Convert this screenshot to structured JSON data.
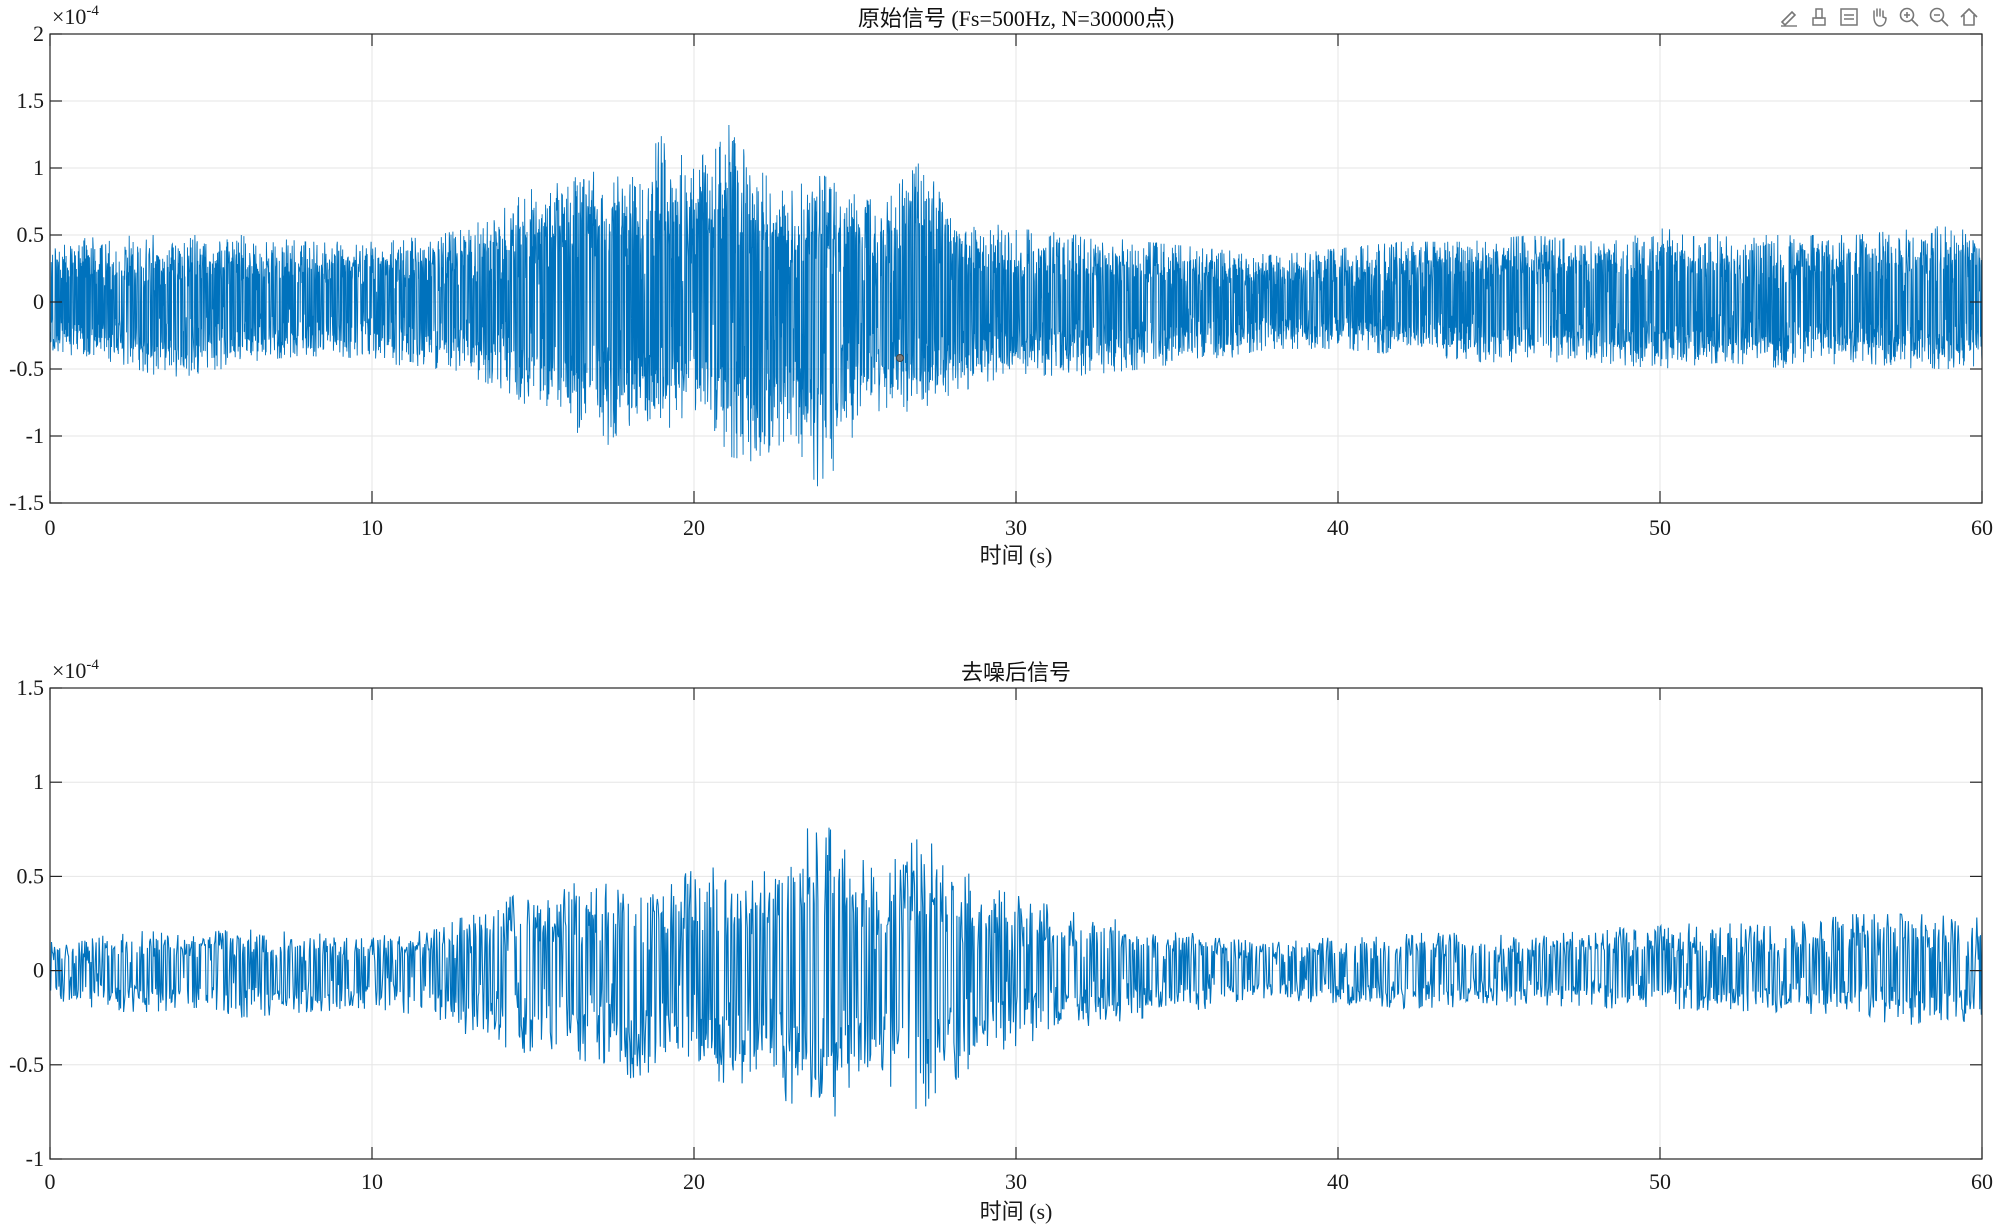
{
  "toolbar": {
    "icons": [
      "brush-icon",
      "data-tip-icon",
      "save-icon",
      "pan-icon",
      "zoom-in-icon",
      "zoom-out-icon",
      "home-icon"
    ]
  },
  "colors": {
    "signal": "#0072BD",
    "grid": "#e6e6e6",
    "axis": "#262626"
  },
  "chart_data": [
    {
      "type": "line",
      "title": "原始信号  (Fs=500Hz, N=30000点)",
      "xlabel": "时间  (s)",
      "ylabel": "",
      "exponent": "×10",
      "exponent_power": "-4",
      "xlim": [
        0,
        60
      ],
      "ylim": [
        -1.5,
        2
      ],
      "xticks": [
        "0",
        "10",
        "20",
        "30",
        "40",
        "50",
        "60"
      ],
      "yticks": [
        "2",
        "1.5",
        "1",
        "0.5",
        "0",
        "-0.5",
        "-1",
        "-1.5"
      ],
      "sample_rate_hz": 500,
      "num_points": 30000,
      "series": [
        {
          "envelope": {
            "t": [
              0,
              2,
              4,
              6,
              8,
              10,
              12,
              13,
              14,
              15,
              16,
              17,
              18,
              19,
              20,
              21,
              22,
              23,
              24,
              25,
              26,
              27,
              28,
              29,
              30,
              32,
              34,
              36,
              38,
              40,
              42,
              44,
              46,
              48,
              50,
              52,
              54,
              56,
              58,
              60
            ],
            "max": [
              0.45,
              0.5,
              0.5,
              0.5,
              0.45,
              0.45,
              0.5,
              0.55,
              0.7,
              0.85,
              0.9,
              1.0,
              0.9,
              1.25,
              1.0,
              1.35,
              1.0,
              0.85,
              0.95,
              0.8,
              0.75,
              1.1,
              0.65,
              0.6,
              0.55,
              0.5,
              0.45,
              0.4,
              0.35,
              0.4,
              0.45,
              0.45,
              0.5,
              0.45,
              0.55,
              0.5,
              0.5,
              0.5,
              0.55,
              0.6
            ],
            "min": [
              -0.4,
              -0.45,
              -0.6,
              -0.45,
              -0.4,
              -0.45,
              -0.5,
              -0.55,
              -0.65,
              -0.8,
              -0.9,
              -1.1,
              -1.0,
              -0.95,
              -0.9,
              -1.15,
              -1.2,
              -1.0,
              -1.45,
              -1.0,
              -0.85,
              -0.8,
              -0.7,
              -0.6,
              -0.55,
              -0.55,
              -0.5,
              -0.45,
              -0.35,
              -0.35,
              -0.4,
              -0.45,
              -0.45,
              -0.45,
              -0.5,
              -0.45,
              -0.5,
              -0.45,
              -0.5,
              -0.5
            ]
          }
        }
      ]
    },
    {
      "type": "line",
      "title": "去噪后信号",
      "xlabel": "时间  (s)",
      "ylabel": "",
      "exponent": "×10",
      "exponent_power": "-4",
      "xlim": [
        0,
        60
      ],
      "ylim": [
        -1,
        1.5
      ],
      "xticks": [
        "0",
        "10",
        "20",
        "30",
        "40",
        "50",
        "60"
      ],
      "yticks": [
        "1.5",
        "1",
        "0.5",
        "0",
        "-0.5",
        "-1"
      ],
      "series": [
        {
          "envelope": {
            "t": [
              0,
              2,
              4,
              6,
              8,
              10,
              12,
              13,
              14,
              15,
              16,
              17,
              18,
              19,
              20,
              21,
              22,
              23,
              24,
              25,
              26,
              27,
              28,
              29,
              30,
              32,
              34,
              36,
              38,
              40,
              42,
              44,
              46,
              48,
              50,
              52,
              54,
              56,
              58,
              60
            ],
            "max": [
              0.15,
              0.22,
              0.2,
              0.22,
              0.2,
              0.18,
              0.22,
              0.3,
              0.38,
              0.42,
              0.45,
              0.5,
              0.5,
              0.45,
              0.55,
              0.55,
              0.5,
              0.65,
              0.85,
              0.6,
              0.55,
              0.72,
              0.6,
              0.45,
              0.4,
              0.3,
              0.25,
              0.2,
              0.15,
              0.18,
              0.2,
              0.2,
              0.18,
              0.22,
              0.25,
              0.25,
              0.25,
              0.3,
              0.3,
              0.28
            ],
            "min": [
              -0.15,
              -0.22,
              -0.22,
              -0.25,
              -0.22,
              -0.2,
              -0.25,
              -0.35,
              -0.4,
              -0.45,
              -0.45,
              -0.5,
              -0.6,
              -0.5,
              -0.55,
              -0.6,
              -0.65,
              -0.7,
              -0.85,
              -0.65,
              -0.6,
              -0.75,
              -0.6,
              -0.45,
              -0.4,
              -0.3,
              -0.25,
              -0.2,
              -0.15,
              -0.18,
              -0.2,
              -0.2,
              -0.18,
              -0.2,
              -0.2,
              -0.22,
              -0.22,
              -0.25,
              -0.3,
              -0.3
            ]
          }
        }
      ]
    }
  ]
}
